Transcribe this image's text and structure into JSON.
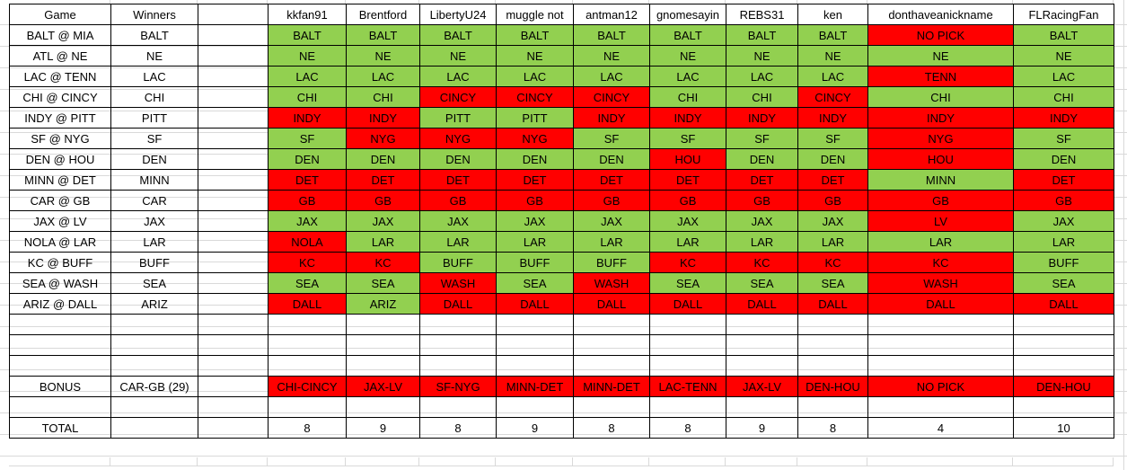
{
  "colors": {
    "correct": "#92D050",
    "wrong": "#FF0000",
    "gridline": "#D9D9D9",
    "cell_border": "#000000"
  },
  "headers": {
    "game": "Game",
    "winners": "Winners"
  },
  "players": [
    "kkfan91",
    "Brentford",
    "LibertyU24",
    "muggle not",
    "antman12",
    "gnomesayin",
    "REBS31",
    "ken",
    "donthaveanickname",
    "FLRacingFan"
  ],
  "games": [
    {
      "matchup": "BALT @ MIA",
      "winner": "BALT",
      "picks": [
        {
          "pick": "BALT",
          "result": "correct"
        },
        {
          "pick": "BALT",
          "result": "correct"
        },
        {
          "pick": "BALT",
          "result": "correct"
        },
        {
          "pick": "BALT",
          "result": "correct"
        },
        {
          "pick": "BALT",
          "result": "correct"
        },
        {
          "pick": "BALT",
          "result": "correct"
        },
        {
          "pick": "BALT",
          "result": "correct"
        },
        {
          "pick": "BALT",
          "result": "correct"
        },
        {
          "pick": "NO PICK",
          "result": "wrong"
        },
        {
          "pick": "BALT",
          "result": "correct"
        }
      ]
    },
    {
      "matchup": "ATL @ NE",
      "winner": "NE",
      "picks": [
        {
          "pick": "NE",
          "result": "correct"
        },
        {
          "pick": "NE",
          "result": "correct"
        },
        {
          "pick": "NE",
          "result": "correct"
        },
        {
          "pick": "NE",
          "result": "correct"
        },
        {
          "pick": "NE",
          "result": "correct"
        },
        {
          "pick": "NE",
          "result": "correct"
        },
        {
          "pick": "NE",
          "result": "correct"
        },
        {
          "pick": "NE",
          "result": "correct"
        },
        {
          "pick": "NE",
          "result": "correct"
        },
        {
          "pick": "NE",
          "result": "correct"
        }
      ]
    },
    {
      "matchup": "LAC @ TENN",
      "winner": "LAC",
      "picks": [
        {
          "pick": "LAC",
          "result": "correct"
        },
        {
          "pick": "LAC",
          "result": "correct"
        },
        {
          "pick": "LAC",
          "result": "correct"
        },
        {
          "pick": "LAC",
          "result": "correct"
        },
        {
          "pick": "LAC",
          "result": "correct"
        },
        {
          "pick": "LAC",
          "result": "correct"
        },
        {
          "pick": "LAC",
          "result": "correct"
        },
        {
          "pick": "LAC",
          "result": "correct"
        },
        {
          "pick": "TENN",
          "result": "wrong"
        },
        {
          "pick": "LAC",
          "result": "correct"
        }
      ]
    },
    {
      "matchup": "CHI @ CINCY",
      "winner": "CHI",
      "picks": [
        {
          "pick": "CHI",
          "result": "correct"
        },
        {
          "pick": "CHI",
          "result": "correct"
        },
        {
          "pick": "CINCY",
          "result": "wrong"
        },
        {
          "pick": "CINCY",
          "result": "wrong"
        },
        {
          "pick": "CINCY",
          "result": "wrong"
        },
        {
          "pick": "CHI",
          "result": "correct"
        },
        {
          "pick": "CHI",
          "result": "correct"
        },
        {
          "pick": "CINCY",
          "result": "wrong"
        },
        {
          "pick": "CHI",
          "result": "correct"
        },
        {
          "pick": "CHI",
          "result": "correct"
        }
      ]
    },
    {
      "matchup": "INDY @ PITT",
      "winner": "PITT",
      "picks": [
        {
          "pick": "INDY",
          "result": "wrong"
        },
        {
          "pick": "INDY",
          "result": "wrong"
        },
        {
          "pick": "PITT",
          "result": "correct"
        },
        {
          "pick": "PITT",
          "result": "correct"
        },
        {
          "pick": "INDY",
          "result": "wrong"
        },
        {
          "pick": "INDY",
          "result": "wrong"
        },
        {
          "pick": "INDY",
          "result": "wrong"
        },
        {
          "pick": "INDY",
          "result": "wrong"
        },
        {
          "pick": "INDY",
          "result": "wrong"
        },
        {
          "pick": "INDY",
          "result": "wrong"
        }
      ]
    },
    {
      "matchup": "SF @ NYG",
      "winner": "SF",
      "picks": [
        {
          "pick": "SF",
          "result": "correct"
        },
        {
          "pick": "NYG",
          "result": "wrong"
        },
        {
          "pick": "NYG",
          "result": "wrong"
        },
        {
          "pick": "NYG",
          "result": "wrong"
        },
        {
          "pick": "SF",
          "result": "correct"
        },
        {
          "pick": "SF",
          "result": "correct"
        },
        {
          "pick": "SF",
          "result": "correct"
        },
        {
          "pick": "SF",
          "result": "correct"
        },
        {
          "pick": "NYG",
          "result": "wrong"
        },
        {
          "pick": "SF",
          "result": "correct"
        }
      ]
    },
    {
      "matchup": "DEN @ HOU",
      "winner": "DEN",
      "picks": [
        {
          "pick": "DEN",
          "result": "correct"
        },
        {
          "pick": "DEN",
          "result": "correct"
        },
        {
          "pick": "DEN",
          "result": "correct"
        },
        {
          "pick": "DEN",
          "result": "correct"
        },
        {
          "pick": "DEN",
          "result": "correct"
        },
        {
          "pick": "HOU",
          "result": "wrong"
        },
        {
          "pick": "DEN",
          "result": "correct"
        },
        {
          "pick": "DEN",
          "result": "correct"
        },
        {
          "pick": "HOU",
          "result": "wrong"
        },
        {
          "pick": "DEN",
          "result": "correct"
        }
      ]
    },
    {
      "matchup": "MINN @ DET",
      "winner": "MINN",
      "picks": [
        {
          "pick": "DET",
          "result": "wrong"
        },
        {
          "pick": "DET",
          "result": "wrong"
        },
        {
          "pick": "DET",
          "result": "wrong"
        },
        {
          "pick": "DET",
          "result": "wrong"
        },
        {
          "pick": "DET",
          "result": "wrong"
        },
        {
          "pick": "DET",
          "result": "wrong"
        },
        {
          "pick": "DET",
          "result": "wrong"
        },
        {
          "pick": "DET",
          "result": "wrong"
        },
        {
          "pick": "MINN",
          "result": "correct"
        },
        {
          "pick": "DET",
          "result": "wrong"
        }
      ]
    },
    {
      "matchup": "CAR @ GB",
      "winner": "CAR",
      "picks": [
        {
          "pick": "GB",
          "result": "wrong"
        },
        {
          "pick": "GB",
          "result": "wrong"
        },
        {
          "pick": "GB",
          "result": "wrong"
        },
        {
          "pick": "GB",
          "result": "wrong"
        },
        {
          "pick": "GB",
          "result": "wrong"
        },
        {
          "pick": "GB",
          "result": "wrong"
        },
        {
          "pick": "GB",
          "result": "wrong"
        },
        {
          "pick": "GB",
          "result": "wrong"
        },
        {
          "pick": "GB",
          "result": "wrong"
        },
        {
          "pick": "GB",
          "result": "wrong"
        }
      ]
    },
    {
      "matchup": "JAX @ LV",
      "winner": "JAX",
      "picks": [
        {
          "pick": "JAX",
          "result": "correct"
        },
        {
          "pick": "JAX",
          "result": "correct"
        },
        {
          "pick": "JAX",
          "result": "correct"
        },
        {
          "pick": "JAX",
          "result": "correct"
        },
        {
          "pick": "JAX",
          "result": "correct"
        },
        {
          "pick": "JAX",
          "result": "correct"
        },
        {
          "pick": "JAX",
          "result": "correct"
        },
        {
          "pick": "JAX",
          "result": "correct"
        },
        {
          "pick": "LV",
          "result": "wrong"
        },
        {
          "pick": "JAX",
          "result": "correct"
        }
      ]
    },
    {
      "matchup": "NOLA @ LAR",
      "winner": "LAR",
      "picks": [
        {
          "pick": "NOLA",
          "result": "wrong"
        },
        {
          "pick": "LAR",
          "result": "correct"
        },
        {
          "pick": "LAR",
          "result": "correct"
        },
        {
          "pick": "LAR",
          "result": "correct"
        },
        {
          "pick": "LAR",
          "result": "correct"
        },
        {
          "pick": "LAR",
          "result": "correct"
        },
        {
          "pick": "LAR",
          "result": "correct"
        },
        {
          "pick": "LAR",
          "result": "correct"
        },
        {
          "pick": "LAR",
          "result": "correct"
        },
        {
          "pick": "LAR",
          "result": "correct"
        }
      ]
    },
    {
      "matchup": "KC @ BUFF",
      "winner": "BUFF",
      "picks": [
        {
          "pick": "KC",
          "result": "wrong"
        },
        {
          "pick": "KC",
          "result": "wrong"
        },
        {
          "pick": "BUFF",
          "result": "correct"
        },
        {
          "pick": "BUFF",
          "result": "correct"
        },
        {
          "pick": "BUFF",
          "result": "correct"
        },
        {
          "pick": "KC",
          "result": "wrong"
        },
        {
          "pick": "KC",
          "result": "wrong"
        },
        {
          "pick": "KC",
          "result": "wrong"
        },
        {
          "pick": "KC",
          "result": "wrong"
        },
        {
          "pick": "BUFF",
          "result": "correct"
        }
      ]
    },
    {
      "matchup": "SEA @ WASH",
      "winner": "SEA",
      "picks": [
        {
          "pick": "SEA",
          "result": "correct"
        },
        {
          "pick": "SEA",
          "result": "correct"
        },
        {
          "pick": "WASH",
          "result": "wrong"
        },
        {
          "pick": "SEA",
          "result": "correct"
        },
        {
          "pick": "WASH",
          "result": "wrong"
        },
        {
          "pick": "SEA",
          "result": "correct"
        },
        {
          "pick": "SEA",
          "result": "correct"
        },
        {
          "pick": "SEA",
          "result": "correct"
        },
        {
          "pick": "WASH",
          "result": "wrong"
        },
        {
          "pick": "SEA",
          "result": "correct"
        }
      ]
    },
    {
      "matchup": "ARIZ @ DALL",
      "winner": "ARIZ",
      "picks": [
        {
          "pick": "DALL",
          "result": "wrong"
        },
        {
          "pick": "ARIZ",
          "result": "correct"
        },
        {
          "pick": "DALL",
          "result": "wrong"
        },
        {
          "pick": "DALL",
          "result": "wrong"
        },
        {
          "pick": "DALL",
          "result": "wrong"
        },
        {
          "pick": "DALL",
          "result": "wrong"
        },
        {
          "pick": "DALL",
          "result": "wrong"
        },
        {
          "pick": "DALL",
          "result": "wrong"
        },
        {
          "pick": "DALL",
          "result": "wrong"
        },
        {
          "pick": "DALL",
          "result": "wrong"
        }
      ]
    },
    {
      "matchup": "",
      "winner": "",
      "picks": []
    }
  ],
  "bonus": {
    "label": "BONUS",
    "winner": "CAR-GB (29)",
    "picks": [
      {
        "pick": "CHI-CINCY",
        "result": "wrong"
      },
      {
        "pick": "JAX-LV",
        "result": "wrong"
      },
      {
        "pick": "SF-NYG",
        "result": "wrong"
      },
      {
        "pick": "MINN-DET",
        "result": "wrong"
      },
      {
        "pick": "MINN-DET",
        "result": "wrong"
      },
      {
        "pick": "LAC-TENN",
        "result": "wrong"
      },
      {
        "pick": "JAX-LV",
        "result": "wrong"
      },
      {
        "pick": "DEN-HOU",
        "result": "wrong"
      },
      {
        "pick": "NO PICK",
        "result": "wrong"
      },
      {
        "pick": "DEN-HOU",
        "result": "wrong"
      }
    ]
  },
  "total": {
    "label": "TOTAL",
    "values": [
      8,
      9,
      8,
      9,
      8,
      8,
      9,
      8,
      4,
      10
    ]
  }
}
